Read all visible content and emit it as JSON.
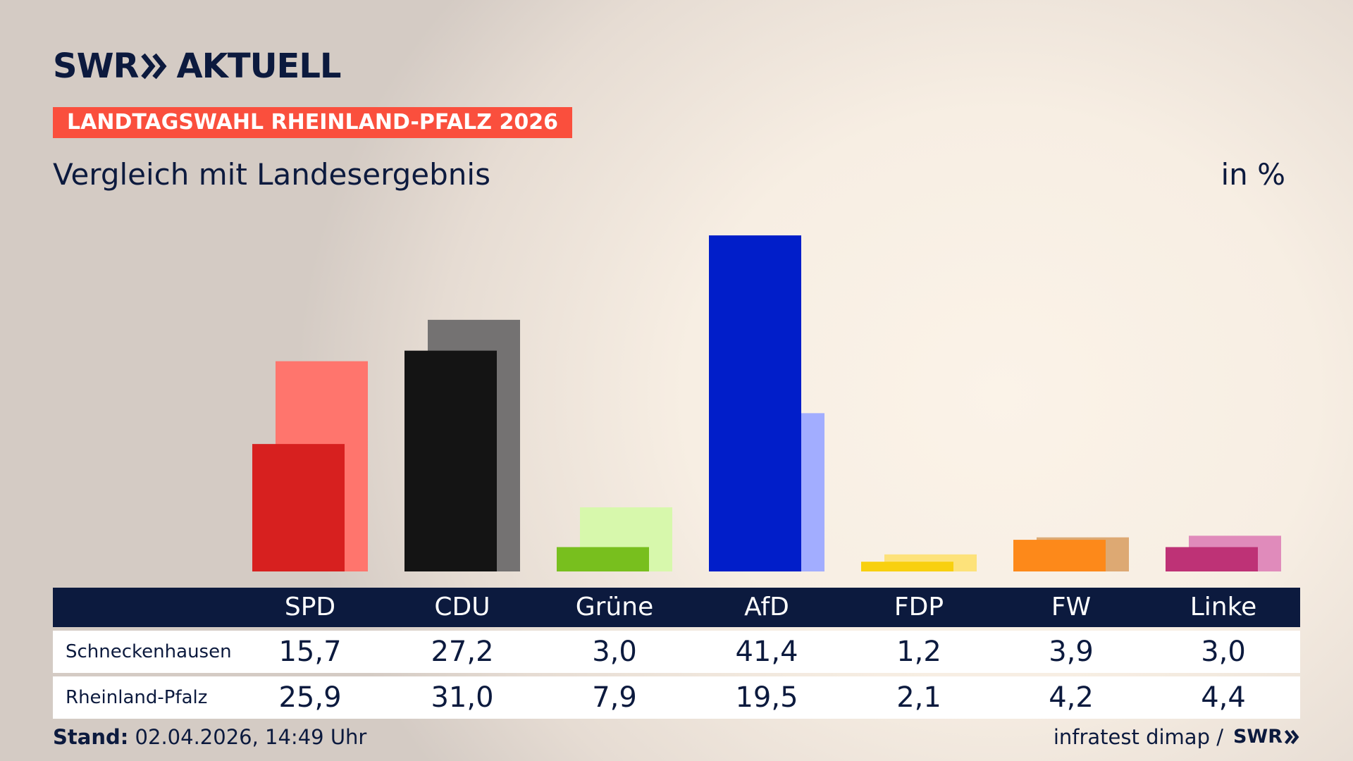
{
  "brand": {
    "logo_left": "SWR",
    "logo_right": "AKTUELL",
    "arrow_icon": "double-chevron-right-icon",
    "logo_color": "#0c1a3e"
  },
  "badge": {
    "label": "LANDTAGSWAHL RHEINLAND-PFALZ 2026",
    "color": "#fa4f3d"
  },
  "header": {
    "subtitle": "Vergleich mit Landesergebnis",
    "unit": "in %"
  },
  "chart_data": {
    "type": "bar",
    "categories": [
      "SPD",
      "CDU",
      "Grüne",
      "AfD",
      "FDP",
      "FW",
      "Linke"
    ],
    "series": [
      {
        "name": "Schneckenhausen",
        "values": [
          15.7,
          27.2,
          3.0,
          41.4,
          1.2,
          3.9,
          3.0
        ],
        "display": [
          "15,7",
          "27,2",
          "3,0",
          "41,4",
          "1,2",
          "3,9",
          "3,0"
        ],
        "colors": [
          "#d7201f",
          "#141414",
          "#78bf1e",
          "#011ec9",
          "#f8d00f",
          "#fd891a",
          "#be3276"
        ]
      },
      {
        "name": "Rheinland-Pfalz",
        "values": [
          25.9,
          31.0,
          7.9,
          19.5,
          2.1,
          4.2,
          4.4
        ],
        "display": [
          "25,9",
          "31,0",
          "7,9",
          "19,5",
          "2,1",
          "4,2",
          "4,4"
        ],
        "colors": [
          "#ff756d",
          "#747272",
          "#d7f8ac",
          "#a2adff",
          "#fde27a",
          "#dda973",
          "#e08bbb"
        ]
      }
    ],
    "ylim": [
      0,
      45
    ],
    "grid": false,
    "legend": "table-below"
  },
  "footer": {
    "stand_label": "Stand:",
    "stand_value": "02.04.2026, 14:49 Uhr",
    "source": "infratest dimap /",
    "source_logo": "SWR"
  }
}
